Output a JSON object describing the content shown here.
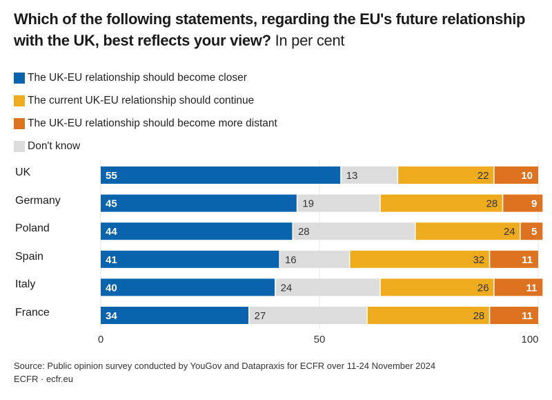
{
  "title": {
    "main": "Which of the following statements, regarding the EU's future relationship with the UK, best reflects your view?",
    "unit": "In per cent"
  },
  "legend": [
    {
      "key": "closer",
      "label": "The UK-EU relationship should become closer",
      "color": "#0a64ad"
    },
    {
      "key": "continue",
      "label": "The current UK-EU relationship should continue",
      "color": "#eeab1e"
    },
    {
      "key": "distant",
      "label": "The UK-EU relationship should become more distant",
      "color": "#dd7320"
    },
    {
      "key": "dontknow",
      "label": "Don't know",
      "color": "#dcdcdc"
    }
  ],
  "source": {
    "line1": "Source: Public opinion survey conducted by YouGov and Datapraxis for ECFR over 11-24 November 2024",
    "line2": "ECFR · ecfr.eu"
  },
  "chart_data": {
    "type": "bar",
    "orientation": "horizontal",
    "stacked": true,
    "title": "Which of the following statements, regarding the EU's future relationship with the UK, best reflects your view? In per cent",
    "xlabel": "",
    "ylabel": "",
    "xlim": [
      0,
      100
    ],
    "xticks": [
      "0",
      "50",
      "100"
    ],
    "grid": true,
    "legend_position": "top-left",
    "categories": [
      "UK",
      "Germany",
      "Poland",
      "Spain",
      "Italy",
      "France"
    ],
    "segment_order": [
      "closer",
      "dontknow",
      "continue",
      "distant"
    ],
    "series": [
      {
        "key": "closer",
        "name": "The UK-EU relationship should become closer",
        "color": "#0a64ad",
        "label_color": "#ffffff",
        "label_bold": true,
        "values": [
          55,
          45,
          44,
          41,
          40,
          34
        ]
      },
      {
        "key": "dontknow",
        "name": "Don't know",
        "color": "#dcdcdc",
        "label_color": "#333333",
        "label_bold": false,
        "values": [
          13,
          19,
          28,
          16,
          24,
          27
        ]
      },
      {
        "key": "continue",
        "name": "The current UK-EU relationship should continue",
        "color": "#eeab1e",
        "label_color": "#333333",
        "label_bold": false,
        "values": [
          22,
          28,
          24,
          32,
          26,
          28
        ]
      },
      {
        "key": "distant",
        "name": "The UK-EU relationship should become more distant",
        "color": "#dd7320",
        "label_color": "#ffffff",
        "label_bold": true,
        "values": [
          10,
          9,
          5,
          11,
          11,
          11
        ]
      }
    ]
  }
}
